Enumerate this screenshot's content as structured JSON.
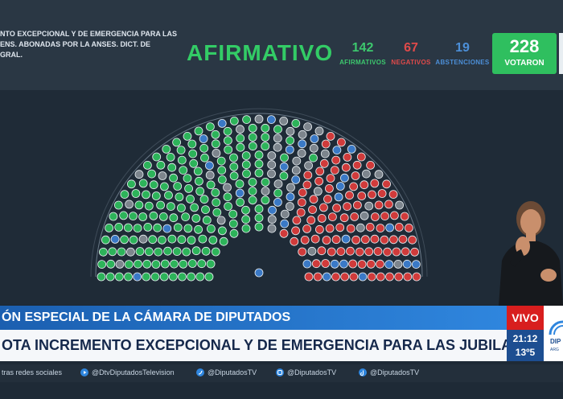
{
  "vote": {
    "motion_lines": [
      "NTO EXCEPCIONAL Y DE EMERGENCIA PARA LAS",
      "ENS. ABONADAS POR LA ANSES. DICT. DE",
      "GRAL."
    ],
    "result": "AFIRMATIVO",
    "afirmativos_count": "142",
    "afirmativos_label": "AFIRMATIVOS",
    "negativos_count": "67",
    "negativos_label": "NEGATIVOS",
    "abstenciones_count": "19",
    "abstenciones_label": "ABSTENCIONES",
    "total_count": "228",
    "total_label": "VOTARON"
  },
  "chamber": {
    "colors": {
      "afirmativo": "#2db35a",
      "negativo": "#d03b3b",
      "abstencion": "#3a79c6",
      "ausente": "#7d858d"
    }
  },
  "lower_third": {
    "title": "ÓN ESPECIAL DE LA CÁMARA DE DIPUTADOS",
    "subtitle": "OTA INCREMENTO EXCEPCIONAL Y DE EMERGENCIA PARA LAS JUBILACIONES Y PENSIONES",
    "live_label": "VIVO",
    "time": "21:12",
    "temperature": "13º5",
    "logo_text": "DIP",
    "logo_subtext": "ARG"
  },
  "social": {
    "lead": "tras redes sociales",
    "items": [
      {
        "icon": "youtube-icon",
        "handle": "@DtvDiputadosTelevision"
      },
      {
        "icon": "twitter-icon",
        "handle": "@DiputadosTV"
      },
      {
        "icon": "instagram-icon",
        "handle": "@DiputadosTV"
      },
      {
        "icon": "tiktok-icon",
        "handle": "@DiputadosTV"
      }
    ]
  }
}
